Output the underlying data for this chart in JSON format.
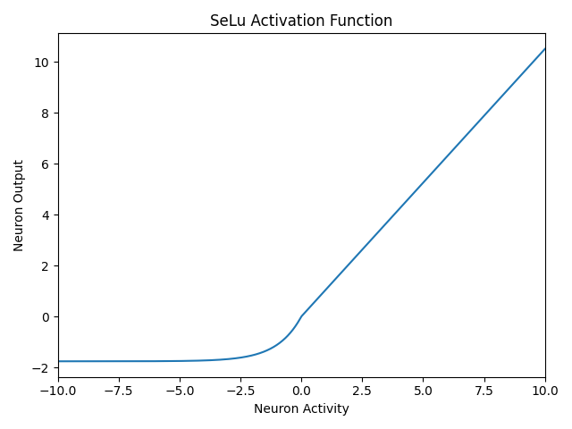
{
  "title": "SeLu Activation Function",
  "xlabel": "Neuron Activity",
  "ylabel": "Neuron Output",
  "x_min": -10,
  "x_max": 10,
  "num_points": 1000,
  "selu_alpha": 1.6732632423543772,
  "selu_scale": 1.0507009873554805,
  "line_color": "#1f77b4",
  "line_width": 1.5,
  "title_fontsize": 12,
  "label_fontsize": 10,
  "background_color": "#ffffff"
}
